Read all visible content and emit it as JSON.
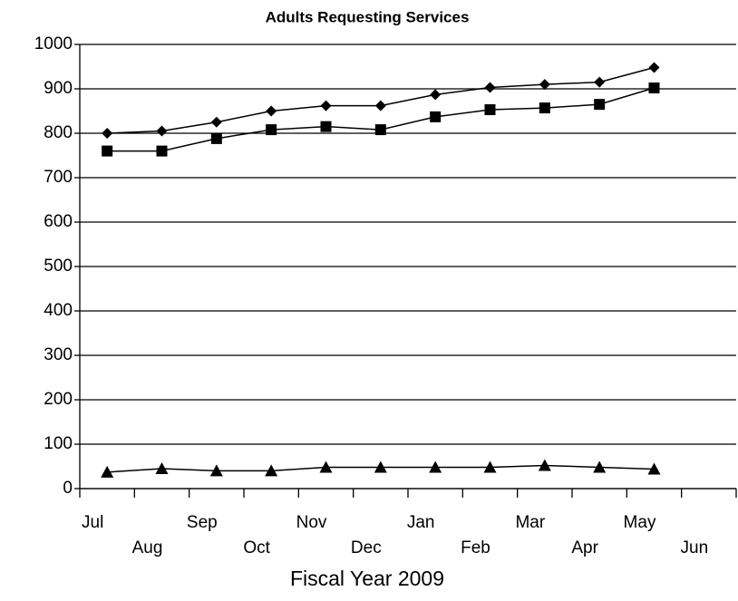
{
  "chart_data": {
    "type": "line",
    "title": "Adults Requesting Services",
    "xlabel": "Fiscal Year 2009",
    "categories": [
      "Jul",
      "Aug",
      "Sep",
      "Oct",
      "Nov",
      "Dec",
      "Jan",
      "Feb",
      "Mar",
      "Apr",
      "May",
      "Jun"
    ],
    "series": [
      {
        "color": "#000000",
        "marker": "diamond",
        "values": [
          800,
          805,
          825,
          850,
          862,
          862,
          887,
          903,
          910,
          915,
          948,
          null
        ]
      },
      {
        "color": "#000000",
        "marker": "square",
        "values": [
          760,
          760,
          788,
          808,
          815,
          808,
          837,
          853,
          857,
          865,
          902,
          null
        ]
      },
      {
        "color": "#000000",
        "marker": "triangle",
        "values": [
          37,
          45,
          40,
          40,
          48,
          48,
          48,
          48,
          52,
          48,
          44,
          null
        ]
      }
    ],
    "ylim": [
      0,
      1000
    ],
    "yticks": [
      0,
      100,
      200,
      300,
      400,
      500,
      600,
      700,
      800,
      900,
      1000
    ],
    "grid": true
  }
}
